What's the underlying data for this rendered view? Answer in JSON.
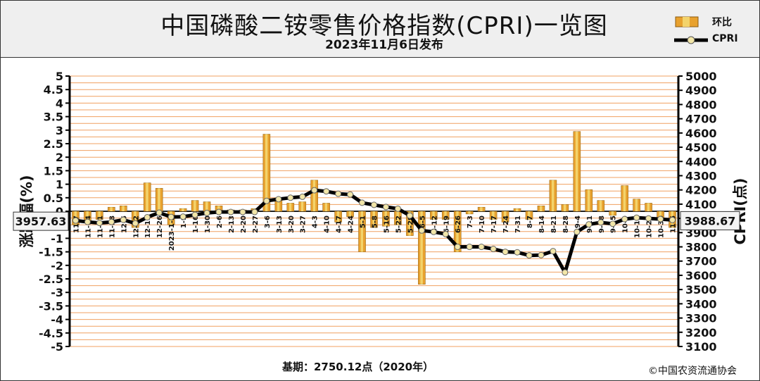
{
  "header": {
    "title": "中国磷酸二铵零售价格指数(CPRI)一览图",
    "subtitle": "2023年11月6日发布"
  },
  "legend": {
    "bar_label": "环比",
    "line_label": "CPRI"
  },
  "footer": {
    "base": "基期：2750.12点（2020年）",
    "copyright": "©中国农资流通协会"
  },
  "left_box": "3957.63",
  "right_box": "3988.67",
  "colors": {
    "bar_fill": "#e8a12e",
    "bar_highlight": "#f3d36b",
    "grid_line": "#f0a060",
    "plot_bg": "#ffffff",
    "line": "#000000",
    "marker": "#f2e6a8"
  },
  "chart_data": {
    "type": "bar+line",
    "ylabel_left": "涨跌幅(%)",
    "ylabel_right": "CPRI(点)",
    "ylim_left": [
      -5,
      5
    ],
    "ylim_right": [
      3100,
      5000
    ],
    "yticks_left": [
      "5",
      "4.5",
      "4",
      "3.5",
      "3",
      "2.5",
      "2",
      "1.5",
      "1",
      "0.5",
      "0",
      "-0.5",
      "-1",
      "-1.5",
      "-2",
      "-2.5",
      "-3",
      "-3.5",
      "-4",
      "-4.5",
      "-5"
    ],
    "yticks_right": [
      "5000",
      "4900",
      "4800",
      "4700",
      "4600",
      "4500",
      "4400",
      "4300",
      "4200",
      "4100",
      "4000",
      "3900",
      "3800",
      "3700",
      "3600",
      "3500",
      "3400",
      "3300",
      "3200",
      "3100"
    ],
    "categories": [
      "11-7",
      "11-14",
      "11-21",
      "11-28",
      "12-5",
      "12-12",
      "12-19",
      "12-26",
      "2023-1-2",
      "1-9",
      "1-16",
      "1-30",
      "2-6",
      "2-13",
      "2-20",
      "2-27",
      "3-6",
      "3-13",
      "3-20",
      "3-27",
      "4-3",
      "4-10",
      "4-17",
      "4-24",
      "5-1",
      "5-8",
      "5-16",
      "5-22",
      "5-29",
      "6-5",
      "6-12",
      "6-19",
      "6-26",
      "7-3",
      "7-10",
      "7-17",
      "7-24",
      "7-31",
      "8-7",
      "8-14",
      "8-21",
      "8-28",
      "9-4",
      "9-11",
      "9-18",
      "9-25",
      "10-9",
      "10-16",
      "10-23",
      "10-30",
      "11-6"
    ],
    "series": [
      {
        "name": "环比",
        "type": "bar",
        "values": [
          -0.5,
          -0.4,
          -0.3,
          0.15,
          0.2,
          -0.6,
          1.05,
          0.85,
          -0.5,
          0.1,
          0.4,
          0.35,
          0.2,
          0.05,
          0.05,
          0.1,
          2.85,
          0.5,
          0.3,
          0.35,
          1.15,
          0.3,
          -0.4,
          -0.2,
          -1.5,
          -0.6,
          -0.55,
          -0.5,
          -0.9,
          -2.7,
          -0.3,
          -0.3,
          -1.5,
          -0.1,
          0.15,
          -0.3,
          -0.4,
          0.1,
          -0.3,
          0.2,
          1.15,
          0.25,
          2.95,
          0.8,
          0.4,
          -0.15,
          0.95,
          0.45,
          0.3,
          -0.25,
          -0.6
        ]
      },
      {
        "name": "CPRI",
        "type": "line",
        "values": [
          3985,
          3975,
          3968,
          3975,
          3990,
          3965,
          4008,
          4040,
          4010,
          4012,
          4025,
          4038,
          4045,
          4045,
          4045,
          4045,
          4123,
          4135,
          4145,
          4152,
          4198,
          4190,
          4173,
          4168,
          4110,
          4095,
          4080,
          4068,
          4020,
          3915,
          3905,
          3890,
          3800,
          3800,
          3800,
          3785,
          3765,
          3762,
          3740,
          3742,
          3770,
          3620,
          3905,
          3958,
          3972,
          3962,
          3995,
          4005,
          4000,
          3995,
          3988.67
        ]
      }
    ]
  }
}
